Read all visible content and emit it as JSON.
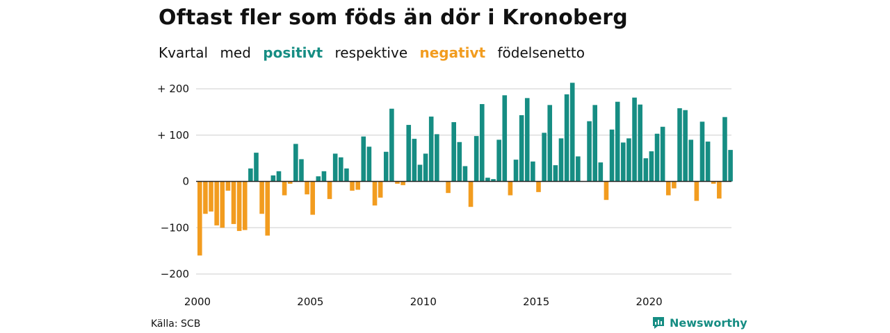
{
  "title": "Oftast fler som föds än dör i Kronoberg",
  "subtitle": {
    "part1": "Kvartal",
    "part2": "med",
    "positive": "positivt",
    "part3": "respektive",
    "negative": "negativt",
    "part4": "födelsenetto"
  },
  "source": "Källa: SCB",
  "brand": "Newsworthy",
  "colors": {
    "positive": "#168d83",
    "negative": "#f29c1f",
    "grid": "#dddddd",
    "zero": "#222222"
  },
  "chart_data": {
    "type": "bar",
    "title": "",
    "xlabel": "",
    "ylabel": "",
    "ylim": [
      -200,
      200
    ],
    "y_ticks": [
      {
        "value": 200,
        "label": "+ 200"
      },
      {
        "value": 100,
        "label": "+ 100"
      },
      {
        "value": 0,
        "label": "0"
      },
      {
        "value": -100,
        "label": "−100"
      },
      {
        "value": -200,
        "label": "−200"
      }
    ],
    "x_ticks": [
      "2000",
      "2005",
      "2010",
      "2015",
      "2020"
    ],
    "x_start_year": 2000,
    "periods_per_year": 4,
    "grid": true,
    "values": [
      -160,
      -70,
      -65,
      -95,
      -100,
      -20,
      -92,
      -107,
      -105,
      28,
      62,
      -70,
      -117,
      13,
      22,
      -30,
      -5,
      81,
      48,
      -28,
      -72,
      11,
      22,
      -38,
      60,
      52,
      28,
      -20,
      -18,
      97,
      75,
      -52,
      -35,
      64,
      157,
      -5,
      -8,
      122,
      92,
      36,
      60,
      140,
      102,
      0,
      -25,
      128,
      85,
      33,
      -55,
      98,
      167,
      8,
      5,
      90,
      186,
      -30,
      47,
      143,
      180,
      43,
      -23,
      105,
      165,
      35,
      93,
      188,
      213,
      54,
      0,
      130,
      165,
      41,
      -40,
      112,
      172,
      84,
      93,
      181,
      166,
      50,
      65,
      103,
      118,
      -30,
      -15,
      158,
      154,
      90,
      -42,
      129,
      86,
      -5,
      -37,
      139,
      68
    ]
  }
}
